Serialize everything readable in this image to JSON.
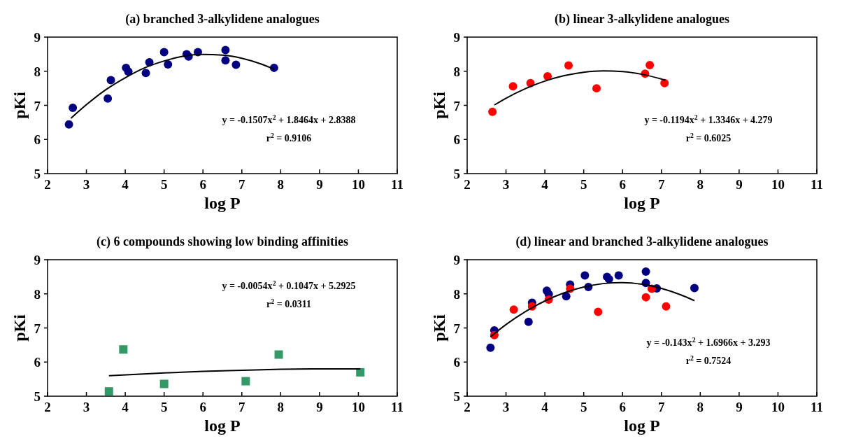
{
  "chart_data": [
    {
      "type": "scatter",
      "title": "(a) branched 3-alkylidene analogues",
      "xlabel": "log P",
      "ylabel": "pKi",
      "xlim": [
        2,
        11
      ],
      "xticks": [
        2,
        3,
        4,
        5,
        6,
        7,
        8,
        9,
        10,
        11
      ],
      "ylim": [
        5,
        9
      ],
      "yticks": [
        5,
        6,
        7,
        8,
        9
      ],
      "annotations": [
        "y = -0.1507x$^{2}$ + 1.8464x + 2.8388",
        "r$^{2}$ = 0.9106"
      ],
      "series": [
        {
          "type": "scatter",
          "marker": "circle",
          "color": "#000080",
          "x": [
            2.55,
            2.65,
            3.55,
            3.63,
            4.02,
            4.08,
            4.53,
            4.62,
            5.0,
            5.1,
            5.58,
            5.63,
            5.87,
            6.58,
            6.58,
            6.85,
            7.83
          ],
          "values": [
            6.44,
            6.93,
            7.2,
            7.74,
            8.1,
            7.99,
            7.95,
            8.26,
            8.56,
            8.2,
            8.5,
            8.43,
            8.56,
            8.62,
            8.32,
            8.19,
            8.1
          ]
        },
        {
          "type": "line",
          "marker": "none",
          "color": "#000000",
          "x": [
            2.6,
            3,
            3.5,
            4,
            4.5,
            5,
            5.5,
            6,
            6.5,
            7,
            7.5,
            7.83
          ],
          "values": [
            6.62,
            7.02,
            7.46,
            7.81,
            8.1,
            8.3,
            8.44,
            8.49,
            8.47,
            8.38,
            8.21,
            8.06
          ]
        }
      ]
    },
    {
      "type": "scatter",
      "title": "(b) linear 3-alkylidene analogues",
      "xlabel": "log P",
      "ylabel": "pKi",
      "xlim": [
        2,
        11
      ],
      "xticks": [
        2,
        3,
        4,
        5,
        6,
        7,
        8,
        9,
        10,
        11
      ],
      "ylim": [
        5,
        9
      ],
      "yticks": [
        5,
        6,
        7,
        8,
        9
      ],
      "annotations": [
        "y = -0.1194x$^{2}$ + 1.3346x + 4.279",
        "r$^{2}$ = 0.6025"
      ],
      "series": [
        {
          "type": "scatter",
          "marker": "circle",
          "color": "#ff0000",
          "x": [
            2.65,
            3.18,
            3.63,
            4.07,
            4.61,
            5.33,
            6.58,
            6.7,
            7.08
          ],
          "values": [
            6.81,
            7.56,
            7.65,
            7.85,
            8.17,
            7.5,
            7.93,
            8.18,
            7.65
          ]
        },
        {
          "type": "line",
          "marker": "none",
          "color": "#000000",
          "x": [
            2.7,
            3,
            3.5,
            4,
            4.5,
            5,
            5.5,
            6,
            6.5,
            7.1
          ],
          "values": [
            7.01,
            7.21,
            7.49,
            7.71,
            7.87,
            7.97,
            8.01,
            7.99,
            7.91,
            7.74
          ]
        }
      ]
    },
    {
      "type": "scatter",
      "title": "(c) 6 compounds showing low binding affinities",
      "xlabel": "log P",
      "ylabel": "pKi",
      "xlim": [
        2,
        11
      ],
      "xticks": [
        2,
        3,
        4,
        5,
        6,
        7,
        8,
        9,
        10,
        11
      ],
      "ylim": [
        5,
        9
      ],
      "yticks": [
        5,
        6,
        7,
        8,
        9
      ],
      "annotations": [
        "y = -0.0054x$^{2}$ + 0.1047x + 5.2925",
        "r$^{2}$ = 0.0311"
      ],
      "series": [
        {
          "type": "scatter",
          "marker": "square",
          "color": "#339966",
          "x": [
            3.58,
            3.95,
            5.0,
            7.1,
            7.95,
            10.05
          ],
          "values": [
            5.14,
            6.37,
            5.36,
            5.44,
            6.22,
            5.7
          ]
        },
        {
          "type": "line",
          "marker": "none",
          "color": "#000000",
          "x": [
            3.58,
            5,
            6,
            7,
            8,
            9,
            10.05
          ],
          "values": [
            5.6,
            5.68,
            5.73,
            5.76,
            5.79,
            5.8,
            5.8
          ]
        }
      ]
    },
    {
      "type": "scatter",
      "title": "(d) linear and branched 3-alkylidene analogues",
      "xlabel": "log P",
      "ylabel": "pKi",
      "xlim": [
        2,
        11
      ],
      "xticks": [
        2,
        3,
        4,
        5,
        6,
        7,
        8,
        9,
        10,
        11
      ],
      "ylim": [
        5,
        9
      ],
      "yticks": [
        5,
        6,
        7,
        8,
        9
      ],
      "annotations": [
        "y = -0.143x$^{2}$ + 1.6966x + 3.293",
        "r$^{2}$ = 0.7524"
      ],
      "series": [
        {
          "type": "scatter",
          "marker": "circle",
          "color": "#000080",
          "x": [
            2.6,
            2.7,
            3.58,
            3.67,
            4.05,
            4.1,
            4.55,
            4.65,
            5.03,
            5.12,
            5.6,
            5.65,
            5.9,
            6.6,
            6.6,
            6.88,
            7.85
          ],
          "values": [
            6.42,
            6.93,
            7.18,
            7.74,
            8.09,
            7.99,
            7.93,
            8.27,
            8.54,
            8.2,
            8.5,
            8.43,
            8.54,
            8.65,
            8.32,
            8.16,
            8.17
          ]
        },
        {
          "type": "scatter",
          "marker": "circle",
          "color": "#ff0000",
          "x": [
            2.7,
            3.2,
            3.67,
            4.1,
            4.65,
            5.37,
            6.6,
            6.75,
            7.12
          ],
          "values": [
            6.79,
            7.54,
            7.63,
            7.83,
            8.15,
            7.47,
            7.9,
            8.15,
            7.63
          ]
        },
        {
          "type": "line",
          "marker": "none",
          "color": "#000000",
          "x": [
            2.6,
            3,
            3.5,
            4,
            4.5,
            5,
            5.5,
            6,
            6.5,
            7,
            7.5,
            7.85
          ],
          "values": [
            6.74,
            7.1,
            7.48,
            7.79,
            8.03,
            8.2,
            8.3,
            8.33,
            8.28,
            8.16,
            7.97,
            7.8
          ]
        }
      ]
    }
  ]
}
